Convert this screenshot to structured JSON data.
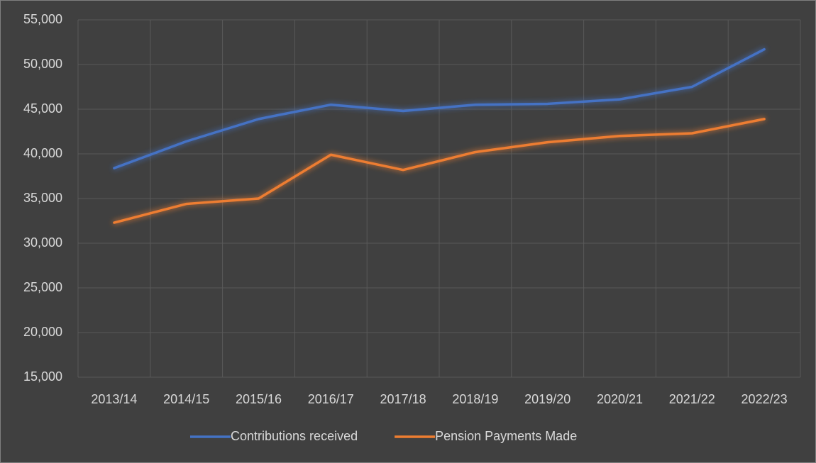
{
  "chart_data": {
    "type": "line",
    "categories": [
      "2013/14",
      "2014/15",
      "2015/16",
      "2016/17",
      "2017/18",
      "2018/19",
      "2019/20",
      "2020/21",
      "2021/22",
      "2022/23"
    ],
    "series": [
      {
        "name": "Contributions received",
        "color": "#4472c4",
        "values": [
          38400,
          41400,
          43900,
          45500,
          44800,
          45500,
          45600,
          46100,
          47500,
          51700
        ]
      },
      {
        "name": "Pension Payments Made",
        "color": "#ed7d31",
        "values": [
          32300,
          34400,
          35000,
          39900,
          38200,
          40200,
          41300,
          42000,
          42300,
          43900
        ]
      }
    ],
    "ylim": [
      15000,
      55000
    ],
    "yticks": [
      {
        "value": 15000,
        "label": "15,000"
      },
      {
        "value": 20000,
        "label": "20,000"
      },
      {
        "value": 25000,
        "label": "25,000"
      },
      {
        "value": 30000,
        "label": "30,000"
      },
      {
        "value": 35000,
        "label": "35,000"
      },
      {
        "value": 40000,
        "label": "40,000"
      },
      {
        "value": 45000,
        "label": "45,000"
      },
      {
        "value": 50000,
        "label": "50,000"
      },
      {
        "value": 55000,
        "label": "55,000"
      }
    ],
    "grid": true,
    "legend": "bottom"
  }
}
